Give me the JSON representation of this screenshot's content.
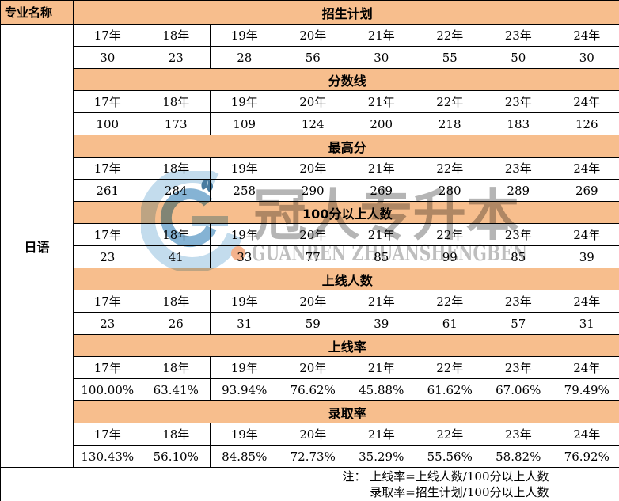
{
  "table": {
    "left_header": "专业名称",
    "major_name": "日语",
    "note": {
      "line1": "注： 上线率=上线人数/100分以上人数",
      "line2": "录取率=招生计划/100分以上人数"
    }
  },
  "watermark": {
    "chinese": "冠人专升本",
    "latin": "GUANREN ZHUANSHENGBEN"
  },
  "colors": {
    "band_bg": "#F7BE8D",
    "border": "#000000",
    "watermark_blue_light": "#B9D6EA",
    "watermark_blue": "#6FA6CD",
    "watermark_gray": "#A8A8A8",
    "watermark_orange": "#F2A478"
  },
  "chart_data": {
    "type": "table",
    "categories": [
      "17年",
      "18年",
      "19年",
      "20年",
      "21年",
      "22年",
      "23年",
      "24年"
    ],
    "series": [
      {
        "name": "招生计划",
        "values": [
          30,
          23,
          28,
          56,
          30,
          55,
          50,
          30
        ]
      },
      {
        "name": "分数线",
        "values": [
          100,
          173,
          109,
          124,
          200,
          218,
          183,
          126
        ]
      },
      {
        "name": "最高分",
        "values": [
          261,
          284,
          258,
          290,
          269,
          280,
          289,
          269
        ]
      },
      {
        "name": "100分以上人数",
        "values": [
          23,
          41,
          33,
          77,
          85,
          99,
          85,
          39
        ]
      },
      {
        "name": "上线人数",
        "values": [
          23,
          26,
          31,
          59,
          39,
          61,
          57,
          31
        ]
      },
      {
        "name": "上线率",
        "values": [
          "100.00%",
          "63.41%",
          "93.94%",
          "76.62%",
          "45.88%",
          "61.62%",
          "67.06%",
          "79.49%"
        ]
      },
      {
        "name": "录取率",
        "values": [
          "130.43%",
          "56.10%",
          "84.85%",
          "72.73%",
          "35.29%",
          "55.56%",
          "58.82%",
          "76.92%"
        ]
      }
    ]
  }
}
